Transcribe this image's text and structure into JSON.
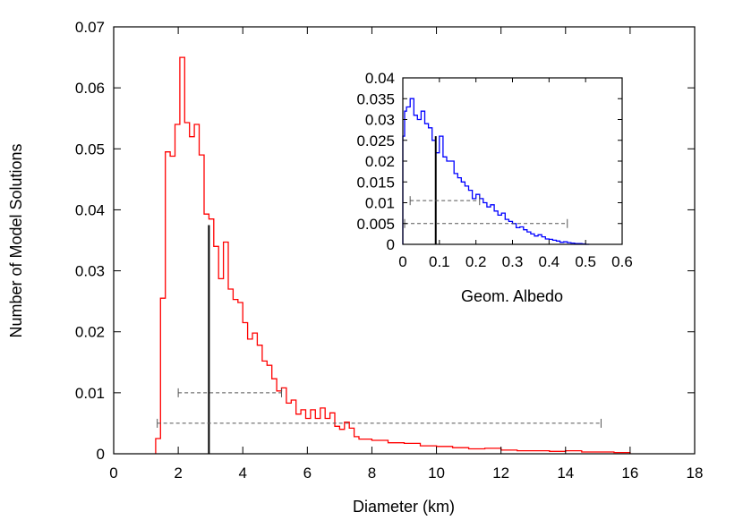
{
  "chart_data": [
    {
      "name": "main",
      "type": "histogram",
      "xlabel": "Diameter (km)",
      "ylabel": "Number of Model Solutions",
      "xlim": [
        0,
        18
      ],
      "ylim": [
        0,
        0.07
      ],
      "xticks": [
        0,
        2,
        4,
        6,
        8,
        10,
        12,
        14,
        16,
        18
      ],
      "xtick_labels": [
        "0",
        "2",
        "4",
        "6",
        "8",
        "10",
        "12",
        "14",
        "16",
        "18"
      ],
      "yticks": [
        0,
        0.01,
        0.02,
        0.03,
        0.04,
        0.05,
        0.06,
        0.07
      ],
      "ytick_labels": [
        "0",
        "0.01",
        "0.02",
        "0.03",
        "0.04",
        "0.05",
        "0.06",
        "0.07"
      ],
      "series": [
        {
          "name": "diameter-histogram",
          "color": "#ff0000",
          "step_x": [
            1.3,
            1.3,
            1.45,
            1.6,
            1.75,
            1.9,
            2.05,
            2.2,
            2.35,
            2.5,
            2.65,
            2.8,
            2.95,
            3.1,
            3.25,
            3.4,
            3.55,
            3.7,
            3.85,
            4.0,
            4.15,
            4.3,
            4.45,
            4.6,
            4.75,
            4.9,
            5.05,
            5.2,
            5.35,
            5.5,
            5.65,
            5.8,
            5.95,
            6.1,
            6.25,
            6.4,
            6.55,
            6.7,
            6.85,
            7.0,
            7.15,
            7.3,
            7.45,
            7.6,
            8.0,
            8.5,
            9.0,
            9.5,
            10.0,
            10.5,
            11.0,
            11.5,
            12.0,
            12.5,
            13.0,
            13.5,
            14.0,
            14.5,
            15.0,
            15.5,
            16.0
          ],
          "step_y": [
            0.0,
            0.0025,
            0.0255,
            0.0495,
            0.0488,
            0.054,
            0.065,
            0.0543,
            0.052,
            0.054,
            0.049,
            0.0393,
            0.0385,
            0.034,
            0.0287,
            0.0347,
            0.027,
            0.0253,
            0.0248,
            0.0215,
            0.0188,
            0.0198,
            0.0178,
            0.0152,
            0.0145,
            0.0123,
            0.0103,
            0.0108,
            0.0083,
            0.0088,
            0.0065,
            0.0072,
            0.0058,
            0.0072,
            0.0058,
            0.0075,
            0.0058,
            0.0067,
            0.0045,
            0.004,
            0.0052,
            0.0042,
            0.0028,
            0.0024,
            0.0022,
            0.0018,
            0.0017,
            0.0013,
            0.0012,
            0.001,
            0.0008,
            0.0009,
            0.0006,
            0.0005,
            0.0005,
            0.0004,
            0.0005,
            0.0003,
            0.0003,
            0.0002,
            0.0
          ]
        }
      ],
      "median_line": {
        "x": 2.95,
        "y": 0.0375
      },
      "range_bars": [
        {
          "name": "1-sigma",
          "x_from": 2.0,
          "x_to": 5.2,
          "y": 0.01
        },
        {
          "name": "3-sigma",
          "x_from": 1.35,
          "x_to": 15.1,
          "y": 0.005
        }
      ]
    },
    {
      "name": "inset",
      "type": "histogram",
      "xlabel": "Geom. Albedo",
      "ylabel": "",
      "xlim": [
        0,
        0.6
      ],
      "ylim": [
        0,
        0.04
      ],
      "xticks": [
        0,
        0.1,
        0.2,
        0.3,
        0.4,
        0.5,
        0.6
      ],
      "xtick_labels": [
        "0",
        "0.1",
        "0.2",
        "0.3",
        "0.4",
        "0.5",
        "0.6"
      ],
      "yticks": [
        0,
        0.005,
        0.01,
        0.015,
        0.02,
        0.025,
        0.03,
        0.035,
        0.04
      ],
      "ytick_labels": [
        "0",
        "0.005",
        "0.01",
        "0.015",
        "0.02",
        "0.025",
        "0.03",
        "0.035",
        "0.04"
      ],
      "series": [
        {
          "name": "albedo-histogram",
          "color": "#0000ff",
          "step_x": [
            0.0,
            0.005,
            0.01,
            0.02,
            0.03,
            0.04,
            0.05,
            0.06,
            0.07,
            0.08,
            0.09,
            0.1,
            0.11,
            0.12,
            0.13,
            0.14,
            0.15,
            0.16,
            0.17,
            0.18,
            0.19,
            0.2,
            0.21,
            0.22,
            0.23,
            0.24,
            0.25,
            0.26,
            0.27,
            0.28,
            0.29,
            0.3,
            0.31,
            0.32,
            0.33,
            0.34,
            0.35,
            0.36,
            0.37,
            0.38,
            0.39,
            0.4,
            0.41,
            0.42,
            0.43,
            0.44,
            0.45,
            0.46,
            0.47,
            0.48,
            0.49,
            0.5,
            0.51
          ],
          "step_y": [
            0.026,
            0.032,
            0.033,
            0.035,
            0.031,
            0.03,
            0.032,
            0.029,
            0.028,
            0.025,
            0.022,
            0.026,
            0.021,
            0.02,
            0.02,
            0.017,
            0.016,
            0.015,
            0.014,
            0.013,
            0.011,
            0.012,
            0.011,
            0.01,
            0.009,
            0.0095,
            0.008,
            0.007,
            0.0075,
            0.006,
            0.0055,
            0.005,
            0.004,
            0.0042,
            0.0035,
            0.003,
            0.0025,
            0.002,
            0.0023,
            0.0018,
            0.0013,
            0.0012,
            0.001,
            0.0008,
            0.0005,
            0.0006,
            0.0004,
            0.0003,
            0.0002,
            0.0002,
            0.0001,
            0.0,
            0.0
          ]
        }
      ],
      "median_line": {
        "x": 0.09,
        "y": 0.026
      },
      "range_bars": [
        {
          "name": "1-sigma",
          "x_from": 0.02,
          "x_to": 0.21,
          "y": 0.0105
        },
        {
          "name": "3-sigma",
          "x_from": 0.005,
          "x_to": 0.45,
          "y": 0.005
        }
      ]
    }
  ],
  "colors": {
    "main_series": "#ff0000",
    "inset_series": "#0000ff",
    "median": "#000000",
    "range_bar": "#555555",
    "frame": "#000000"
  }
}
